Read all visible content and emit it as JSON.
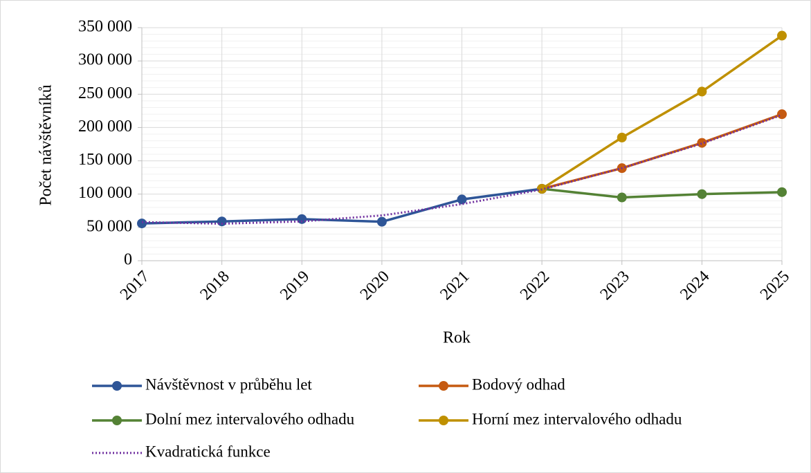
{
  "chart_data": {
    "type": "line",
    "categories": [
      "2017",
      "2018",
      "2019",
      "2020",
      "2021",
      "2022",
      "2023",
      "2024",
      "2025"
    ],
    "x_label": "Rok",
    "y_label": "Počet návštěvníků",
    "ylim": [
      0,
      350000
    ],
    "yticks": [
      0,
      {
        "value": 50000,
        "label": "50 000"
      },
      {
        "value": 100000,
        "label": "100 000"
      },
      {
        "value": 150000,
        "label": "150 000"
      },
      {
        "value": 200000,
        "label": "200 000"
      },
      {
        "value": 250000,
        "label": "250 000"
      },
      {
        "value": 300000,
        "label": "300 000"
      },
      {
        "value": 350000,
        "label": "350 000"
      }
    ],
    "grid": true,
    "legend": "bottom",
    "series": [
      {
        "name": "Návštěvnost v průběhu let",
        "color": "#2e5597",
        "style": "solid",
        "markers": true,
        "values": [
          56000,
          59000,
          62500,
          58500,
          92000,
          108000,
          null,
          null,
          null
        ]
      },
      {
        "name": "Bodový odhad",
        "color": "#c55a11",
        "style": "solid",
        "markers": true,
        "values": [
          null,
          null,
          null,
          null,
          null,
          108000,
          139000,
          177000,
          220000
        ]
      },
      {
        "name": "Dolní mez intervalového odhadu",
        "color": "#548235",
        "style": "solid",
        "markers": true,
        "values": [
          null,
          null,
          null,
          null,
          null,
          108000,
          95000,
          100000,
          103000
        ]
      },
      {
        "name": "Horní mez intervalového odhadu",
        "color": "#bf9000",
        "style": "solid",
        "markers": true,
        "values": [
          null,
          null,
          null,
          null,
          null,
          108000,
          185000,
          254000,
          338000
        ]
      },
      {
        "name": "Kvadratická funkce",
        "color": "#7030a0",
        "style": "dotted",
        "markers": false,
        "values": [
          58000,
          55500,
          59000,
          68000,
          85000,
          107000,
          139000,
          176000,
          219000
        ]
      }
    ]
  }
}
